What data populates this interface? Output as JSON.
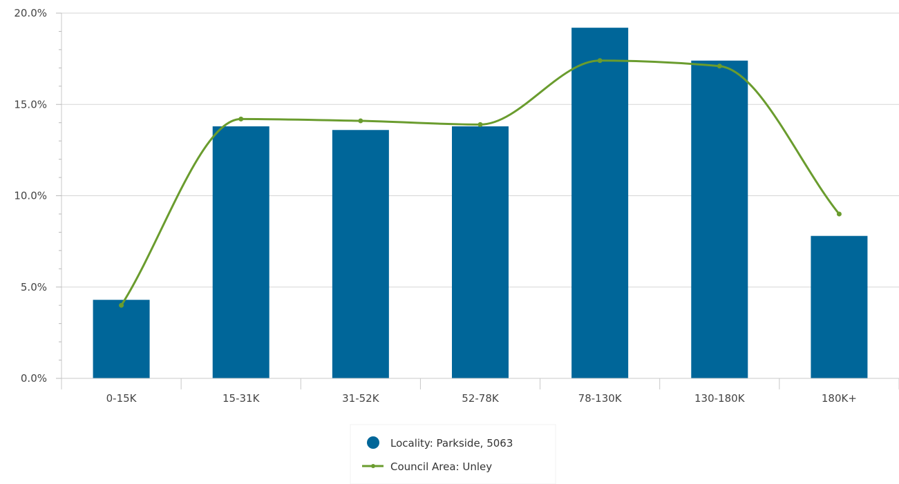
{
  "chart_data": {
    "type": "bar",
    "categories": [
      "0-15K",
      "15-31K",
      "31-52K",
      "52-78K",
      "78-130K",
      "130-180K",
      "180K+"
    ],
    "ylim": [
      0,
      20
    ],
    "yticks": [
      0,
      5,
      10,
      15,
      20
    ],
    "ytick_labels": [
      "0.0%",
      "5.0%",
      "10.0%",
      "15.0%",
      "20.0%"
    ],
    "grid": true,
    "legend_position": "bottom-center",
    "series": [
      {
        "name": "Locality: Parkside, 5063",
        "type": "bar",
        "color": "#006699",
        "marker": "circle",
        "values": [
          4.3,
          13.8,
          13.6,
          13.8,
          19.2,
          17.4,
          7.8
        ]
      },
      {
        "name": "Council Area: Unley",
        "type": "line",
        "color": "#6a9c2e",
        "marker": "line-dot",
        "smooth": true,
        "values": [
          4.0,
          14.2,
          14.1,
          13.9,
          17.4,
          17.1,
          9.0
        ]
      }
    ]
  }
}
